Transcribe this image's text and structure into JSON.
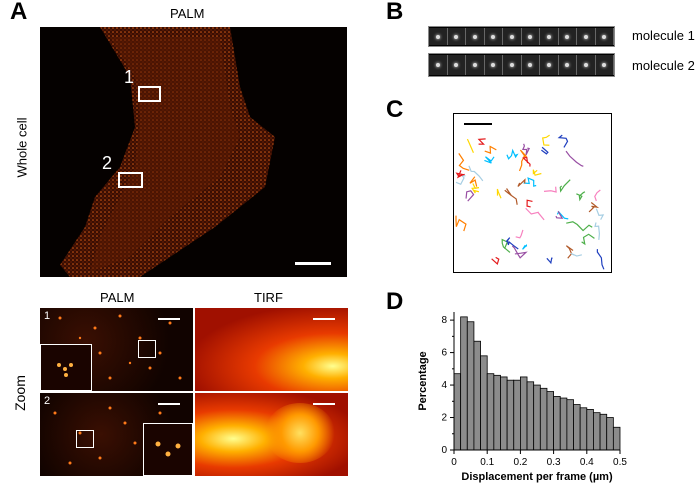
{
  "panelA": {
    "label": "A",
    "palm_title": "PALM",
    "whole_cell_label": "Whole cell",
    "roi1_label": "1",
    "roi2_label": "2",
    "zoom_label": "Zoom",
    "zoom_palm_title": "PALM",
    "zoom_tirf_title": "TIRF",
    "zoom1_num": "1",
    "zoom2_num": "2"
  },
  "panelB": {
    "label": "B",
    "molecule1": "molecule 1",
    "molecule2": "molecule 2",
    "frames_per_strip": 10
  },
  "panelC": {
    "label": "C",
    "track_colors": [
      "#e41a1c",
      "#ff7f00",
      "#ffd700",
      "#4daf4a",
      "#00bfff",
      "#1f3fbf",
      "#984ea3",
      "#a6cee3",
      "#f781bf",
      "#b15928"
    ]
  },
  "panelD": {
    "label": "D",
    "chart_data": {
      "type": "bar",
      "xlabel": "Displacement per frame (µm)",
      "ylabel": "Percentage",
      "xlim": [
        0,
        0.5
      ],
      "ylim": [
        0,
        8.5
      ],
      "xticks": [
        "0",
        "0.1",
        "0.2",
        "0.3",
        "0.4",
        "0.5"
      ],
      "yticks": [
        "0",
        "2",
        "4",
        "6",
        "8"
      ],
      "bin_width": 0.02,
      "bin_starts": [
        0.0,
        0.02,
        0.04,
        0.06,
        0.08,
        0.1,
        0.12,
        0.14,
        0.16,
        0.18,
        0.2,
        0.22,
        0.24,
        0.26,
        0.28,
        0.3,
        0.32,
        0.34,
        0.36,
        0.38,
        0.4,
        0.42,
        0.44,
        0.46,
        0.48
      ],
      "values": [
        4.7,
        8.2,
        7.9,
        6.7,
        5.8,
        4.7,
        4.6,
        4.5,
        4.3,
        4.3,
        4.5,
        4.2,
        4.0,
        3.8,
        3.6,
        3.3,
        3.2,
        3.1,
        2.8,
        2.6,
        2.5,
        2.3,
        2.2,
        2.0,
        1.4
      ],
      "bar_color": "#8c8c8c"
    }
  }
}
